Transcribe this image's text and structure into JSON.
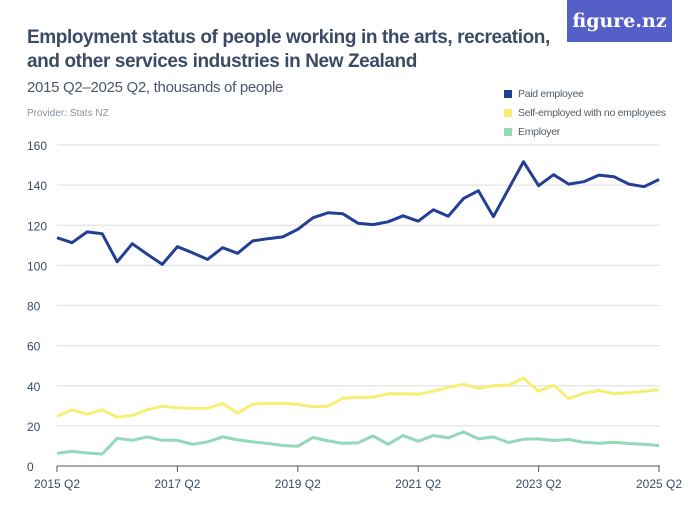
{
  "header": {
    "title": "Employment status of people working in the arts, recreation, and other services industries in New Zealand",
    "subtitle": "2015 Q2–2025 Q2, thousands of people",
    "provider": "Provider: Stats NZ",
    "logo": "figure.nz"
  },
  "chart_data": {
    "type": "line",
    "title": "Employment status of people working in the arts, recreation, and other services industries in New Zealand",
    "subtitle": "2015 Q2–2025 Q2, thousands of people",
    "ylim": [
      0,
      160
    ],
    "yticks": [
      0,
      20,
      40,
      60,
      80,
      100,
      120,
      140,
      160
    ],
    "xticks": [
      "2015 Q2",
      "2017 Q2",
      "2019 Q2",
      "2021 Q2",
      "2023 Q2",
      "2025 Q2"
    ],
    "x_start": "2015 Q2",
    "x_end": "2025 Q2",
    "quarters": 41,
    "grid": true,
    "legend": "top-right",
    "series": [
      {
        "name": "Paid employee",
        "color": "#233f94",
        "values": [
          113.8,
          111.3,
          116.7,
          115.8,
          101.8,
          110.8,
          105.5,
          100.5,
          109.3,
          106.3,
          103,
          108.8,
          106,
          112.2,
          113.3,
          114.2,
          118,
          123.7,
          126.2,
          125.7,
          121,
          120.3,
          121.7,
          124.7,
          122,
          127.7,
          124.5,
          133.3,
          137.2,
          124.3,
          138,
          151.7,
          139.7,
          145.2,
          140.5,
          141.7,
          145,
          144.2,
          140.5,
          139.2,
          142.8
        ]
      },
      {
        "name": "Self-employed with no employees",
        "color": "#f6ef74",
        "values": [
          24.7,
          28,
          25.8,
          28,
          24.3,
          25.2,
          28,
          29.8,
          29,
          28.7,
          28.8,
          31.2,
          26.3,
          30.8,
          31.2,
          31.2,
          30.7,
          29.5,
          29.8,
          33.8,
          34.3,
          34.3,
          36,
          36,
          35.8,
          37.3,
          39.2,
          40.7,
          38.8,
          40,
          40.2,
          43.8,
          37.3,
          40.3,
          33.5,
          36.3,
          37.7,
          36,
          36.5,
          37.3,
          38
        ]
      },
      {
        "name": "Employer",
        "color": "#94d9b6",
        "values": [
          6.3,
          7.3,
          6.5,
          6,
          13.8,
          12.8,
          14.5,
          12.8,
          12.8,
          10.8,
          12,
          14.5,
          13,
          12,
          11.2,
          10.2,
          9.8,
          14.2,
          12.5,
          11.3,
          11.5,
          15,
          10.8,
          15.2,
          12.3,
          15.2,
          14,
          17,
          13.5,
          14.5,
          11.7,
          13.3,
          13.5,
          12.7,
          13.2,
          11.8,
          11.3,
          11.8,
          11.2,
          10.8,
          10.2
        ]
      }
    ]
  }
}
